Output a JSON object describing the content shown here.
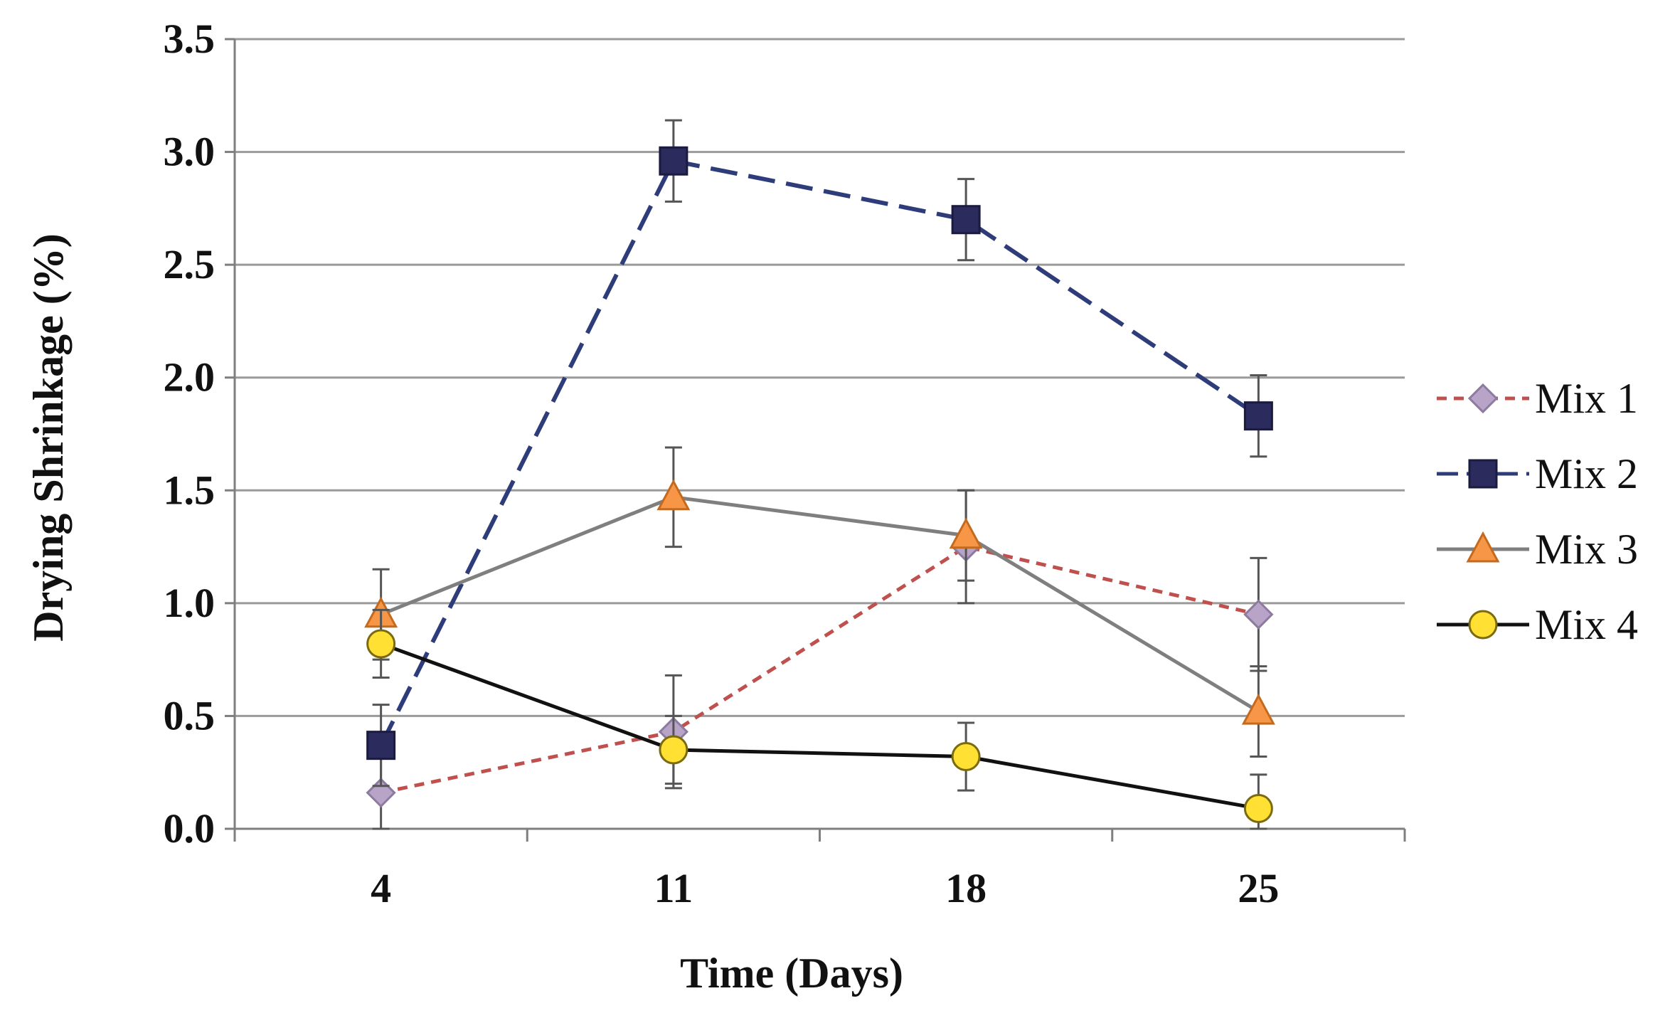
{
  "chart_data": {
    "type": "line",
    "title": "",
    "xlabel": "Time (Days)",
    "ylabel": "Drying Shrinkage (%)",
    "categories": [
      "4",
      "11",
      "18",
      "25"
    ],
    "ylim": [
      0,
      3.5
    ],
    "yticks": [
      0.0,
      0.5,
      1.0,
      1.5,
      2.0,
      2.5,
      3.0,
      3.5
    ],
    "ytick_labels": [
      "0.0",
      "0.5",
      "1.0",
      "1.5",
      "2.0",
      "2.5",
      "3.0",
      "3.5"
    ],
    "grid": true,
    "legend_position": "right",
    "series": [
      {
        "name": "Mix 1",
        "values": [
          0.16,
          0.43,
          1.25,
          0.95
        ],
        "error": [
          0.2,
          0.25,
          0.25,
          0.25
        ],
        "color": "#c0504d",
        "marker_fill": "#b7a4c6",
        "marker_stroke": "#8d7aa0",
        "marker": "diamond",
        "line_style": "short-dash"
      },
      {
        "name": "Mix 2",
        "values": [
          0.37,
          2.96,
          2.7,
          1.83
        ],
        "error": [
          0.18,
          0.18,
          0.18,
          0.18
        ],
        "color": "#2e3d7a",
        "marker_fill": "#2b2b5e",
        "marker_stroke": "#1b1b40",
        "marker": "square",
        "line_style": "long-dash"
      },
      {
        "name": "Mix 3",
        "values": [
          0.95,
          1.47,
          1.3,
          0.52
        ],
        "error": [
          0.2,
          0.22,
          0.2,
          0.2
        ],
        "color": "#7f7f7f",
        "marker_fill": "#f79646",
        "marker_stroke": "#c46a1e",
        "marker": "triangle",
        "line_style": "solid"
      },
      {
        "name": "Mix 4",
        "values": [
          0.82,
          0.35,
          0.32,
          0.09
        ],
        "error": [
          0.15,
          0.15,
          0.15,
          0.15
        ],
        "color": "#111111",
        "marker_fill": "#ffe033",
        "marker_stroke": "#7a6a10",
        "marker": "circle",
        "line_style": "solid"
      }
    ]
  }
}
